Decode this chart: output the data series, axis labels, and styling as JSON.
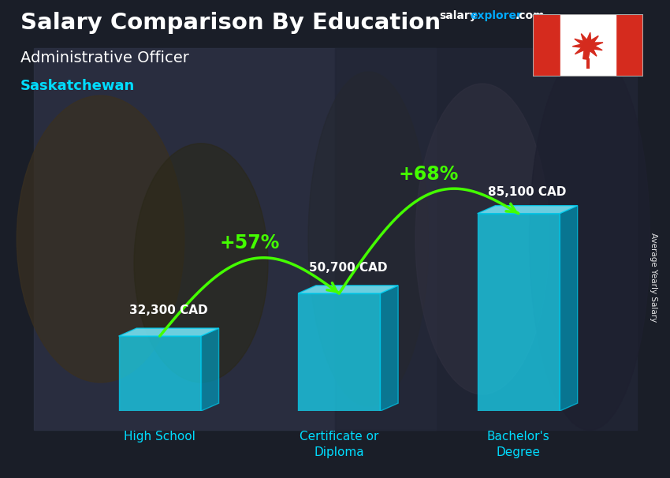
{
  "title": "Salary Comparison By Education",
  "subtitle": "Administrative Officer",
  "location": "Saskatchewan",
  "website_part1": "salary",
  "website_part2": "explorer",
  "website_part3": ".com",
  "ylabel": "Average Yearly Salary",
  "categories": [
    "High School",
    "Certificate or\nDiploma",
    "Bachelor's\nDegree"
  ],
  "values": [
    32300,
    50700,
    85100
  ],
  "value_labels": [
    "32,300 CAD",
    "50,700 CAD",
    "85,100 CAD"
  ],
  "pct_labels": [
    "+57%",
    "+68%"
  ],
  "bar_face_color": "#1ad4f0",
  "bar_top_color": "#7aecff",
  "bar_side_color": "#0099bb",
  "bar_edge_color": "#00ccee",
  "bar_alpha": 0.75,
  "bg_color": "#2a3040",
  "title_color": "#ffffff",
  "subtitle_color": "#ffffff",
  "location_color": "#00ddff",
  "value_color": "#ffffff",
  "pct_color": "#44ff00",
  "arrow_color": "#44ff00",
  "xlabel_color": "#00ddff",
  "website_color1": "#ffffff",
  "website_color2": "#00aaff",
  "ylabel_color": "#ffffff"
}
